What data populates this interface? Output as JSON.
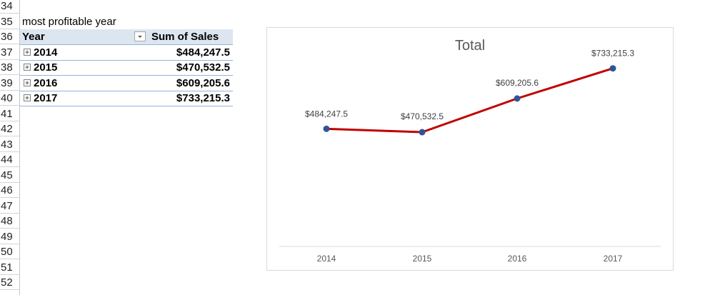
{
  "sheet": {
    "rows": [
      "34",
      "35",
      "36",
      "37",
      "38",
      "39",
      "40",
      "41",
      "42",
      "43",
      "44",
      "45",
      "46",
      "47",
      "48",
      "49",
      "50",
      "51",
      "52"
    ],
    "a35": "most profitable year"
  },
  "pivot": {
    "header_year": "Year",
    "header_sum": "Sum of Sales",
    "rows": [
      {
        "year": "2014",
        "value": "$484,247.5"
      },
      {
        "year": "2015",
        "value": "$470,532.5"
      },
      {
        "year": "2016",
        "value": "$609,205.6"
      },
      {
        "year": "2017",
        "value": "$733,215.3"
      }
    ]
  },
  "colors": {
    "line": "#c00000",
    "marker": "#2f5597",
    "header_bg": "#dce6f1"
  },
  "chart_data": {
    "type": "line",
    "title": "Total",
    "categories": [
      "2014",
      "2015",
      "2016",
      "2017"
    ],
    "values": [
      484247.5,
      470532.5,
      609205.6,
      733215.3
    ],
    "data_labels": [
      "$484,247.5",
      "$470,532.5",
      "$609,205.6",
      "$733,215.3"
    ],
    "ylim": [
      0,
      800000
    ],
    "grid": false,
    "legend": "none"
  }
}
